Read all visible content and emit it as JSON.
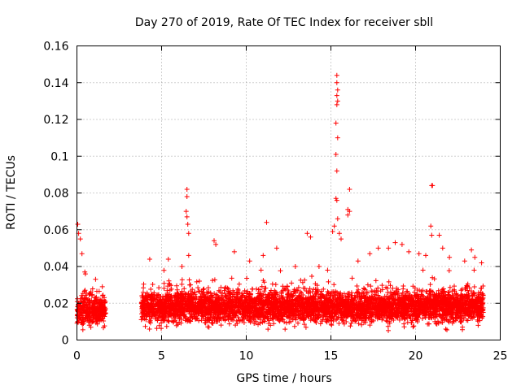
{
  "chart_data": {
    "type": "scatter",
    "title": "Day 270 of 2019, Rate Of TEC Index for receiver sbll",
    "xlabel": "GPS time / hours",
    "ylabel": "ROTI / TECUs",
    "xlim": [
      0,
      25
    ],
    "ylim": [
      0,
      0.16
    ],
    "x_ticks": [
      0,
      5,
      10,
      15,
      20,
      25
    ],
    "x_tick_labels": [
      "0",
      "5",
      "10",
      "15",
      "20",
      "25"
    ],
    "y_ticks": [
      0,
      0.02,
      0.04,
      0.06,
      0.08,
      0.1,
      0.12,
      0.14,
      0.16
    ],
    "y_tick_labels": [
      "0",
      "0.02",
      "0.04",
      "0.06",
      "0.08",
      "0.1",
      "0.12",
      "0.14",
      "0.16"
    ],
    "grid": true,
    "marker": "+",
    "color": "#ff0000",
    "series": [
      {
        "name": "ROTI",
        "segments": [
          {
            "x_start": 0.0,
            "x_end": 1.7,
            "median": 0.016,
            "spread": 0.008
          },
          {
            "x_start": 3.8,
            "x_end": 24.0,
            "median": 0.018,
            "spread": 0.009
          }
        ],
        "peaks": [
          {
            "x": 0.05,
            "y": 0.063
          },
          {
            "x": 0.1,
            "y": 0.058
          },
          {
            "x": 0.2,
            "y": 0.055
          },
          {
            "x": 0.3,
            "y": 0.047
          },
          {
            "x": 0.5,
            "y": 0.036
          },
          {
            "x": 1.1,
            "y": 0.033
          },
          {
            "x": 1.5,
            "y": 0.029
          },
          {
            "x": 4.3,
            "y": 0.044
          },
          {
            "x": 5.4,
            "y": 0.044
          },
          {
            "x": 6.2,
            "y": 0.04
          },
          {
            "x": 6.5,
            "y": 0.082
          },
          {
            "x": 6.5,
            "y": 0.078
          },
          {
            "x": 6.45,
            "y": 0.07
          },
          {
            "x": 6.5,
            "y": 0.067
          },
          {
            "x": 6.55,
            "y": 0.063
          },
          {
            "x": 6.6,
            "y": 0.058
          },
          {
            "x": 6.6,
            "y": 0.046
          },
          {
            "x": 8.1,
            "y": 0.054
          },
          {
            "x": 8.2,
            "y": 0.052
          },
          {
            "x": 9.3,
            "y": 0.048
          },
          {
            "x": 10.2,
            "y": 0.043
          },
          {
            "x": 11.0,
            "y": 0.046
          },
          {
            "x": 11.2,
            "y": 0.064
          },
          {
            "x": 11.8,
            "y": 0.05
          },
          {
            "x": 12.9,
            "y": 0.04
          },
          {
            "x": 13.6,
            "y": 0.058
          },
          {
            "x": 13.8,
            "y": 0.056
          },
          {
            "x": 14.3,
            "y": 0.04
          },
          {
            "x": 15.1,
            "y": 0.059
          },
          {
            "x": 15.2,
            "y": 0.062
          },
          {
            "x": 15.35,
            "y": 0.144
          },
          {
            "x": 15.35,
            "y": 0.14
          },
          {
            "x": 15.4,
            "y": 0.136
          },
          {
            "x": 15.35,
            "y": 0.133
          },
          {
            "x": 15.4,
            "y": 0.13
          },
          {
            "x": 15.35,
            "y": 0.128
          },
          {
            "x": 15.3,
            "y": 0.118
          },
          {
            "x": 15.4,
            "y": 0.11
          },
          {
            "x": 15.3,
            "y": 0.101
          },
          {
            "x": 15.35,
            "y": 0.092
          },
          {
            "x": 15.3,
            "y": 0.077
          },
          {
            "x": 15.35,
            "y": 0.076
          },
          {
            "x": 15.4,
            "y": 0.066
          },
          {
            "x": 15.5,
            "y": 0.058
          },
          {
            "x": 15.6,
            "y": 0.055
          },
          {
            "x": 16.1,
            "y": 0.082
          },
          {
            "x": 16.0,
            "y": 0.071
          },
          {
            "x": 16.0,
            "y": 0.068
          },
          {
            "x": 16.1,
            "y": 0.07
          },
          {
            "x": 16.6,
            "y": 0.043
          },
          {
            "x": 17.3,
            "y": 0.047
          },
          {
            "x": 17.8,
            "y": 0.05
          },
          {
            "x": 18.4,
            "y": 0.05
          },
          {
            "x": 18.8,
            "y": 0.053
          },
          {
            "x": 19.2,
            "y": 0.052
          },
          {
            "x": 19.6,
            "y": 0.048
          },
          {
            "x": 20.2,
            "y": 0.047
          },
          {
            "x": 20.6,
            "y": 0.046
          },
          {
            "x": 20.95,
            "y": 0.084
          },
          {
            "x": 21.0,
            "y": 0.084
          },
          {
            "x": 20.9,
            "y": 0.062
          },
          {
            "x": 20.95,
            "y": 0.057
          },
          {
            "x": 21.4,
            "y": 0.057
          },
          {
            "x": 21.6,
            "y": 0.05
          },
          {
            "x": 22.0,
            "y": 0.045
          },
          {
            "x": 22.9,
            "y": 0.043
          },
          {
            "x": 23.3,
            "y": 0.049
          },
          {
            "x": 23.5,
            "y": 0.045
          },
          {
            "x": 23.9,
            "y": 0.042
          }
        ]
      }
    ]
  }
}
